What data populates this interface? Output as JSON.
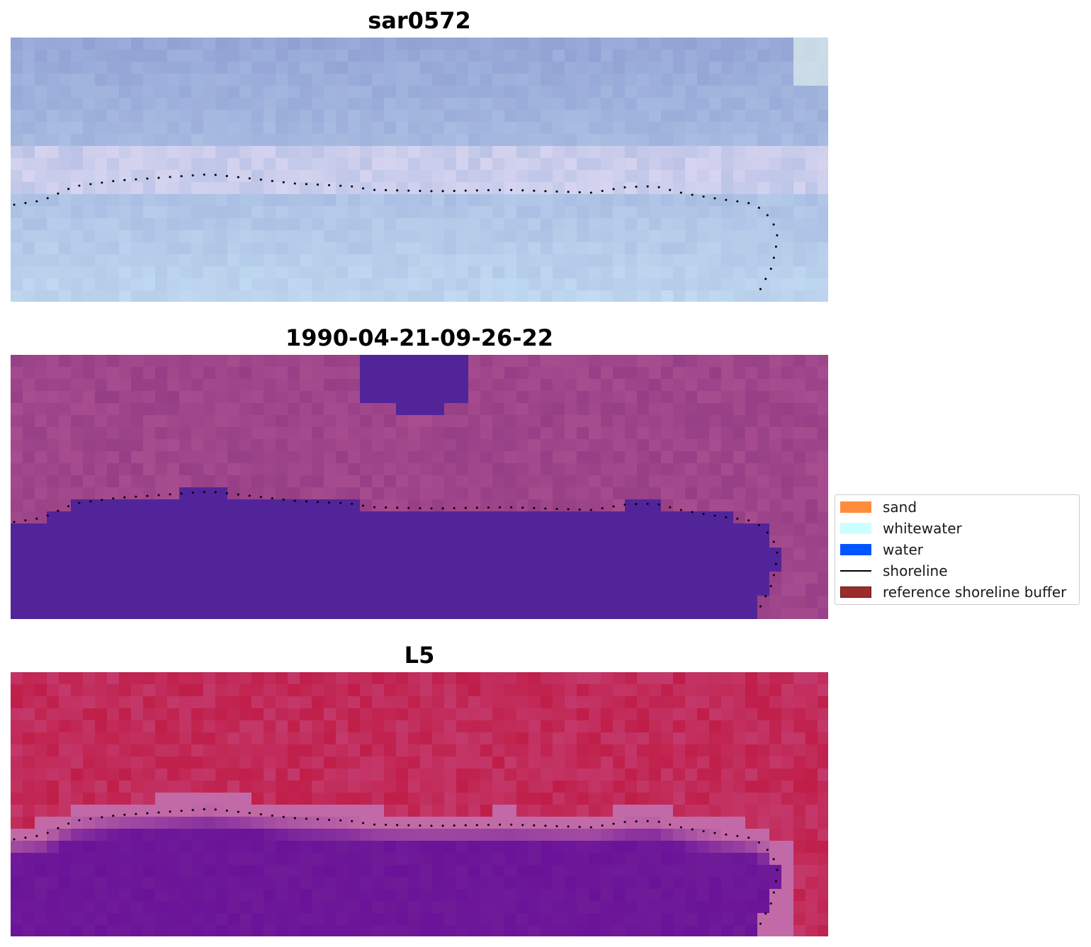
{
  "panels": [
    {
      "id": "sar",
      "title": "sar0572",
      "palette": "sar"
    },
    {
      "id": "classified",
      "title": "1990-04-21-09-26-22",
      "palette": "classified"
    },
    {
      "id": "index",
      "title": "L5",
      "palette": "index"
    }
  ],
  "legend": {
    "items": [
      {
        "label": "sand",
        "color": "#ff8c3a",
        "kind": "patch"
      },
      {
        "label": "whitewater",
        "color": "#ccffff",
        "kind": "patch"
      },
      {
        "label": "water",
        "color": "#0055ff",
        "kind": "patch"
      },
      {
        "label": "shoreline",
        "color": "#000000",
        "kind": "line"
      },
      {
        "label": "reference shoreline buffer",
        "color": "#9b2d2d",
        "kind": "patch"
      }
    ]
  },
  "shoreline_color": "#000000",
  "colors": {
    "sar_top": "#8f9fd2",
    "sar_bottom": "#bcd4ee",
    "classified_land": "#963f86",
    "classified_water": "#52249a",
    "index_land": "#c01e48",
    "index_edge": "#c26aa7",
    "index_water": "#6a1399"
  }
}
